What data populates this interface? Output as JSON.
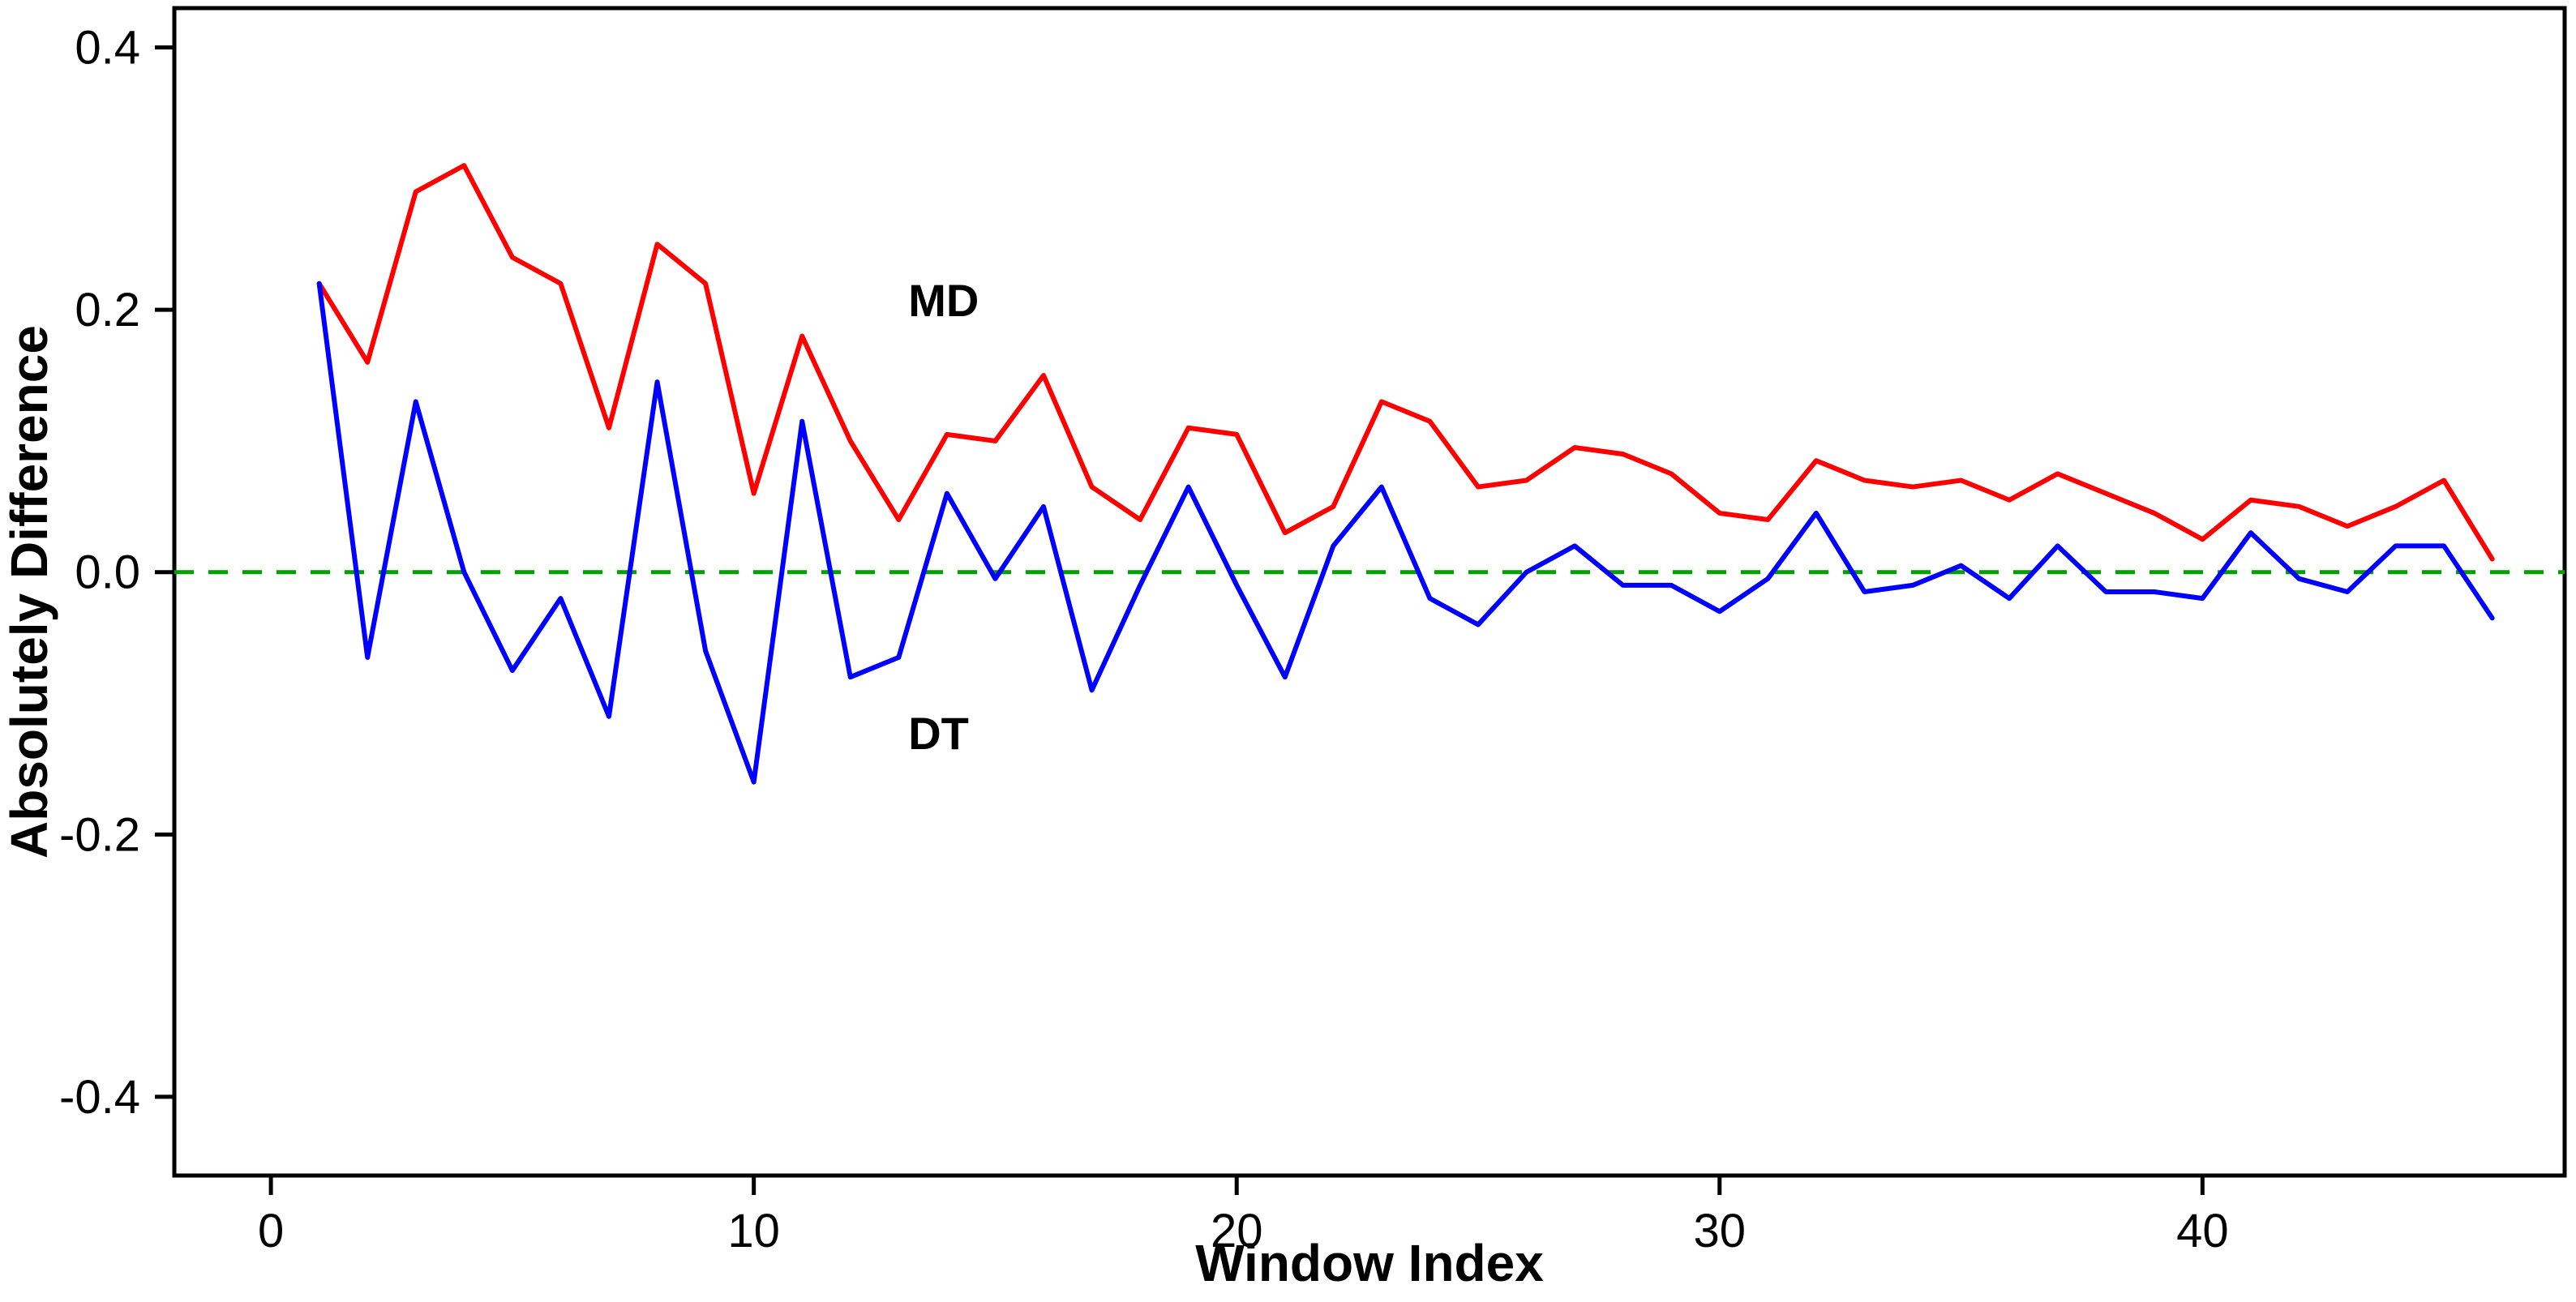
{
  "chart_data": {
    "type": "line",
    "title": "",
    "xlabel": "Window Index",
    "ylabel": "Absolutely Difference",
    "xlim": [
      -2,
      47.5
    ],
    "ylim": [
      -0.46,
      0.43
    ],
    "grid": false,
    "legend": "none",
    "xticks": [
      {
        "value": 0,
        "label": "0"
      },
      {
        "value": 10,
        "label": "10"
      },
      {
        "value": 20,
        "label": "20"
      },
      {
        "value": 30,
        "label": "30"
      },
      {
        "value": 40,
        "label": "40"
      }
    ],
    "yticks": [
      {
        "value": 0.4,
        "label": "0.4"
      },
      {
        "value": 0.2,
        "label": "0.2"
      },
      {
        "value": 0.0,
        "label": "0.0"
      },
      {
        "value": -0.2,
        "label": "-0.2"
      },
      {
        "value": -0.4,
        "label": "-0.4"
      }
    ],
    "zero_line": {
      "y": 0,
      "color": "#00a100",
      "style": "dashed"
    },
    "x": [
      1,
      2,
      3,
      4,
      5,
      6,
      7,
      8,
      9,
      10,
      11,
      12,
      13,
      14,
      15,
      16,
      17,
      18,
      19,
      20,
      21,
      22,
      23,
      24,
      25,
      26,
      27,
      28,
      29,
      30,
      31,
      32,
      33,
      34,
      35,
      36,
      37,
      38,
      39,
      40,
      41,
      42,
      43,
      44,
      45,
      46
    ],
    "series": [
      {
        "name": "MD",
        "color": "#ff0000",
        "values": [
          0.22,
          0.16,
          0.29,
          0.31,
          0.24,
          0.22,
          0.11,
          0.25,
          0.22,
          0.06,
          0.18,
          0.1,
          0.04,
          0.105,
          0.1,
          0.15,
          0.065,
          0.04,
          0.11,
          0.105,
          0.03,
          0.05,
          0.13,
          0.115,
          0.065,
          0.07,
          0.095,
          0.09,
          0.075,
          0.045,
          0.04,
          0.085,
          0.07,
          0.065,
          0.07,
          0.055,
          0.075,
          0.06,
          0.045,
          0.025,
          0.055,
          0.05,
          0.035,
          0.05,
          0.07,
          0.01
        ]
      },
      {
        "name": "DT",
        "color": "#0000ff",
        "values": [
          0.22,
          -0.065,
          0.13,
          0.0,
          -0.075,
          -0.02,
          -0.11,
          0.145,
          -0.06,
          -0.16,
          0.115,
          -0.08,
          -0.065,
          0.06,
          -0.005,
          0.05,
          -0.09,
          -0.01,
          0.065,
          -0.01,
          -0.08,
          0.02,
          0.065,
          -0.02,
          -0.04,
          0.0,
          0.02,
          -0.01,
          -0.01,
          -0.03,
          -0.005,
          0.045,
          -0.015,
          -0.01,
          0.005,
          -0.02,
          0.02,
          -0.015,
          -0.015,
          -0.02,
          0.03,
          -0.005,
          -0.015,
          0.02,
          0.02,
          -0.035
        ]
      }
    ],
    "annotations": [
      {
        "text": "MD",
        "x": 13.2,
        "y": 0.195
      },
      {
        "text": "DT",
        "x": 13.2,
        "y": -0.135
      }
    ]
  }
}
